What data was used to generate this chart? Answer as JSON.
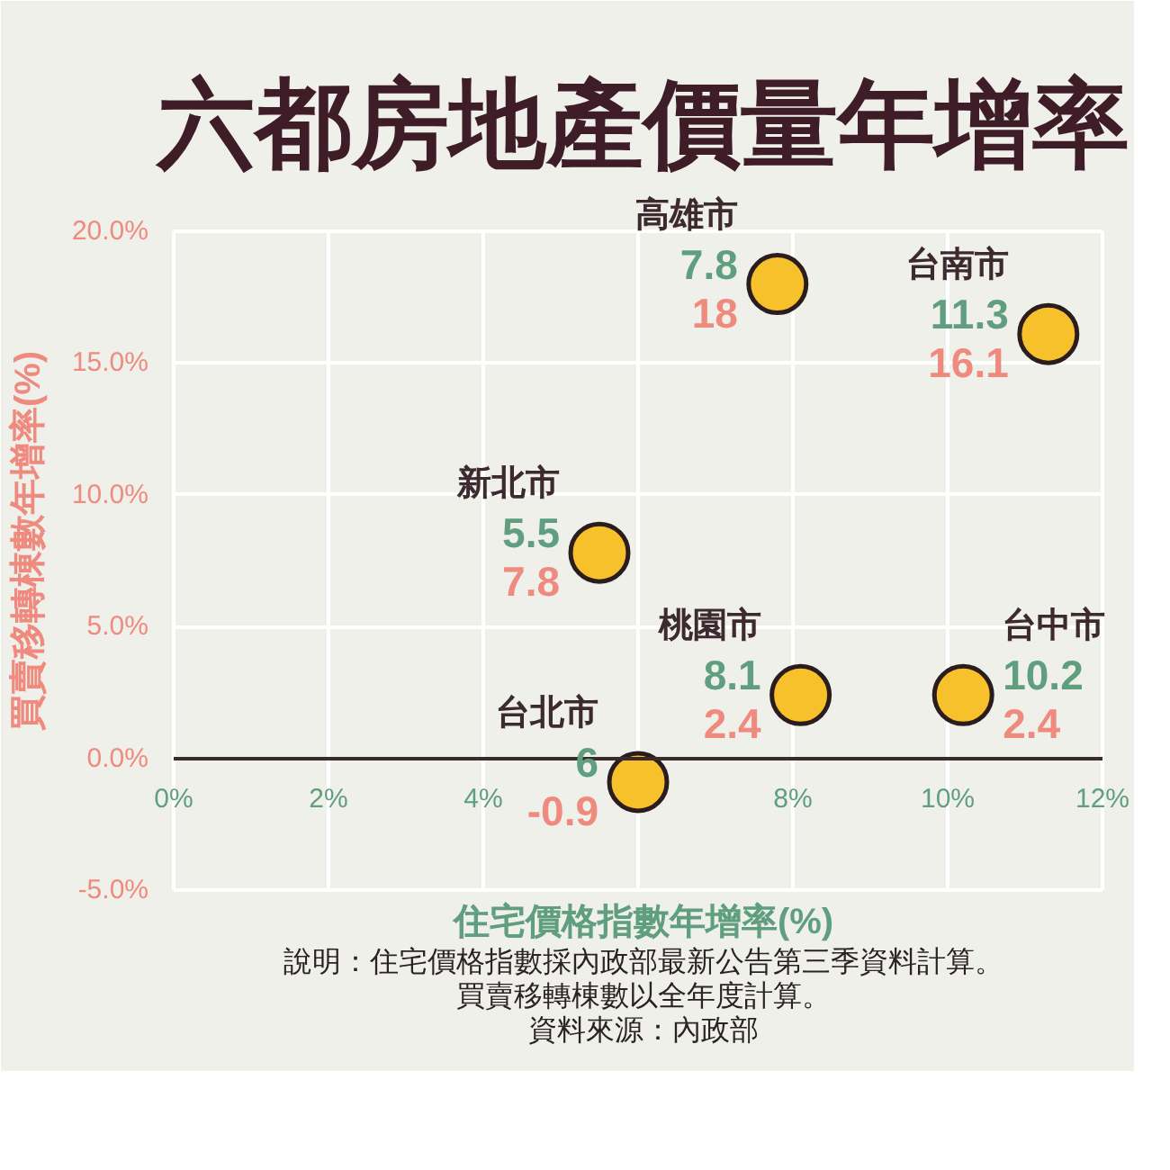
{
  "chart_data": {
    "type": "scatter",
    "title": "六都房地產價量年增率",
    "xlabel": "住宅價格指數年增率(%)",
    "ylabel": "買賣移轉棟數年增率(%)",
    "annotations": [
      {
        "text": "7.8",
        "x": 7.8,
        "y": 18
      },
      {
        "text": "11.3",
        "x": 11.3,
        "y": 16.1
      },
      {
        "text": "5.5",
        "x": 5.5,
        "y": 7.8
      },
      {
        "text": "10.2",
        "x": 10.2,
        "y": 2.4
      },
      {
        "text": "8.1",
        "x": 8.1,
        "y": 2.4
      },
      {
        "text": "6",
        "x": 6,
        "y": -0.9
      },
      "說明：住宅價格指數採內政部最新公告第三季資料計算。",
      "買賣移轉棟數以全年度計算。",
      "資料來源：內政部"
    ],
    "series": [
      {
        "name": "高雄市",
        "color": "#f6c12b",
        "x": [
          7.8
        ],
        "values": [
          18
        ]
      },
      {
        "name": "台南市",
        "color": "#f6c12b",
        "x": [
          11.3
        ],
        "values": [
          16.1
        ]
      },
      {
        "name": "新北市",
        "color": "#f6c12b",
        "x": [
          5.5
        ],
        "values": [
          7.8
        ]
      },
      {
        "name": "台中市",
        "color": "#f6c12b",
        "x": [
          10.2
        ],
        "values": [
          2.4
        ]
      },
      {
        "name": "桃園市",
        "color": "#f6c12b",
        "x": [
          8.1
        ],
        "values": [
          2.4
        ]
      },
      {
        "name": "台北市",
        "color": "#f6c12b",
        "x": [
          6
        ],
        "values": [
          -0.9
        ]
      }
    ],
    "xlim": [
      0,
      12
    ],
    "ylim": [
      -5,
      20
    ],
    "xticks": [
      {
        "value": 0,
        "label": "0%"
      },
      {
        "value": 2,
        "label": "2%"
      },
      {
        "value": 4,
        "label": "4%"
      },
      {
        "value": 6,
        "label": null
      },
      {
        "value": 8,
        "label": "8%"
      },
      {
        "value": 10,
        "label": "10%"
      },
      {
        "value": 12,
        "label": "12%"
      }
    ],
    "yticks": [
      {
        "value": -5,
        "label": "-5.0%"
      },
      {
        "value": 0,
        "label": "0.0%"
      },
      {
        "value": 5,
        "label": "5.0%"
      },
      {
        "value": 10,
        "label": "10.0%"
      },
      {
        "value": 15,
        "label": "15.0%"
      },
      {
        "value": 20,
        "label": "20.0%"
      }
    ],
    "grid": true,
    "marker": "circle",
    "data_labels": true
  }
}
